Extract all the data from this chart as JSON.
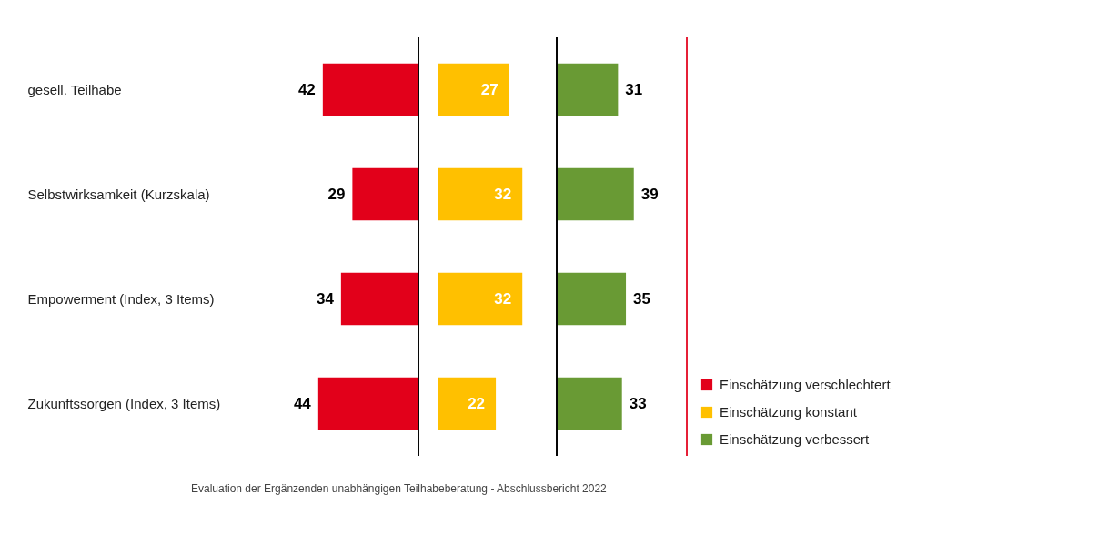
{
  "chart_data": [
    {
      "type": "bar",
      "orientation": "horizontal",
      "categories": [
        "gesell. Teilhabe",
        "Selbstwirksamkeit (Kurzskala)",
        "Empowerment (Index, 3 Items)",
        "Zukunftssorgen (Index, 3 Items)"
      ],
      "tick_labels": "y",
      "data_labels": true,
      "legend": "right",
      "series": [
        {
          "name": "Einschätzung verschlechtert",
          "color": "#e2001a",
          "values": [
            42,
            29,
            34,
            44
          ]
        }
      ],
      "annotations": [
        "Evaluation der Ergänzenden unabhängigen Teilhabeberatung - Abschlussbericht 2022"
      ]
    },
    {
      "type": "bar",
      "orientation": "horizontal",
      "categories": [
        null,
        null,
        null,
        null
      ],
      "tick_labels": false,
      "data_labels": true,
      "legend": "right",
      "series": [
        {
          "name": "Einschätzung konstant",
          "color": "#ffc000",
          "values": [
            27,
            32,
            32,
            22
          ]
        }
      ]
    },
    {
      "type": "bar",
      "orientation": "horizontal",
      "categories": [
        null,
        null,
        null,
        null
      ],
      "tick_labels": false,
      "data_labels": true,
      "legend": "right",
      "series": [
        {
          "name": "Einschätzung verbessert",
          "color": "#699a34",
          "values": [
            31,
            39,
            35,
            33
          ]
        }
      ]
    }
  ]
}
